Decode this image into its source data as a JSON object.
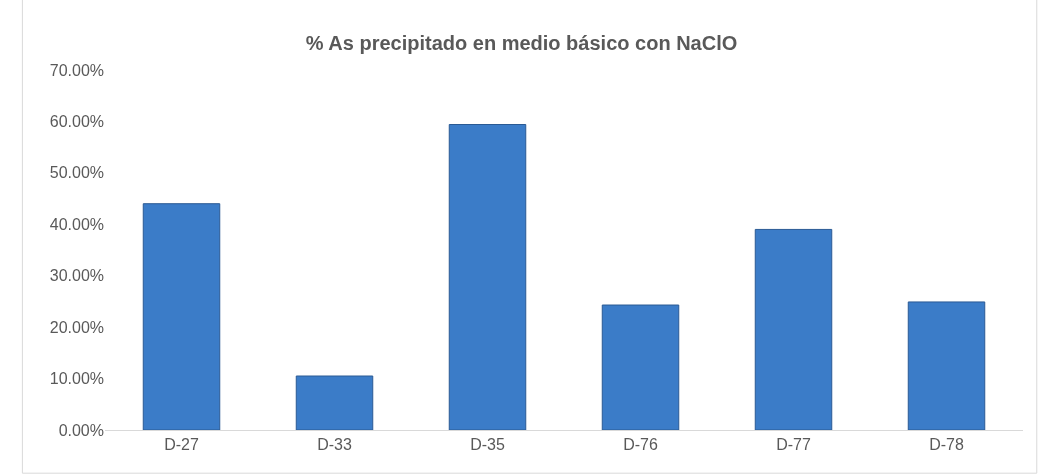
{
  "chart_data": {
    "type": "bar",
    "title": "% As precipitado en medio básico con NaClO",
    "categories": [
      "D-27",
      "D-33",
      "D-35",
      "D-76",
      "D-77",
      "D-78"
    ],
    "values": [
      44.0,
      10.5,
      59.4,
      24.3,
      39.0,
      24.9
    ],
    "color": "#3b7cc8",
    "ylim": [
      0,
      70
    ],
    "yticks": [
      {
        "value": 0,
        "label": "0.00%"
      },
      {
        "value": 10,
        "label": "10.00%"
      },
      {
        "value": 20,
        "label": "20.00%"
      },
      {
        "value": 30,
        "label": "30.00%"
      },
      {
        "value": 40,
        "label": "40.00%"
      },
      {
        "value": 50,
        "label": "50.00%"
      },
      {
        "value": 60,
        "label": "60.00%"
      },
      {
        "value": 70,
        "label": "70.00%"
      }
    ],
    "legend": false
  }
}
